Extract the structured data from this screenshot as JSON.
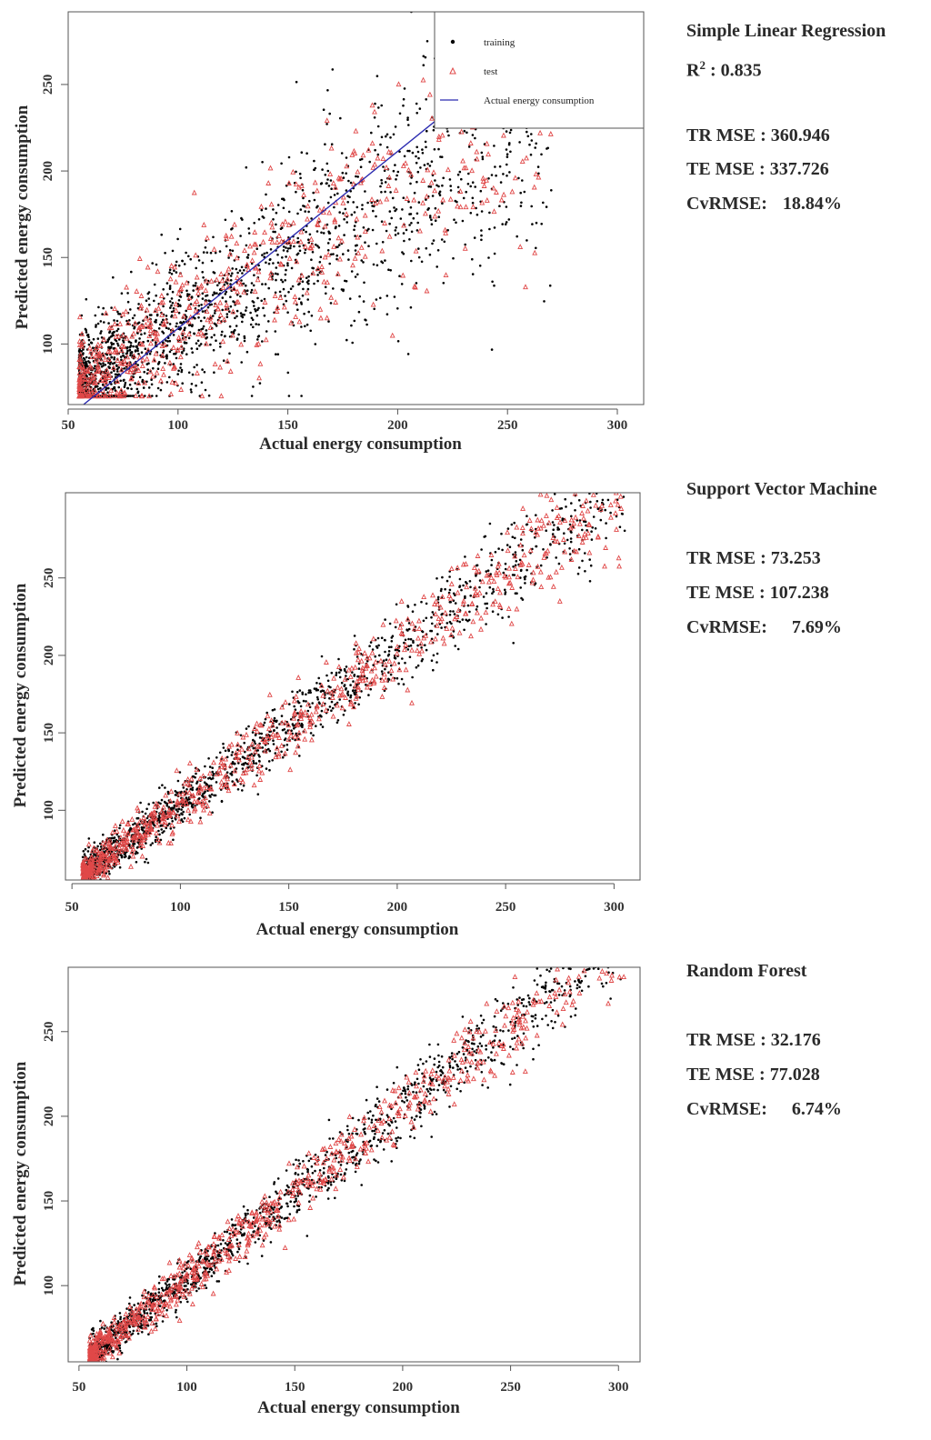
{
  "chart_data": [
    {
      "type": "scatter",
      "model": "Simple Linear Regression",
      "xlabel": "Actual energy consumption",
      "ylabel": "Predicted energy consumption",
      "xlim": [
        50,
        312
      ],
      "ylim": [
        65,
        292
      ],
      "xticks": [
        50,
        100,
        150,
        200,
        250,
        300
      ],
      "yticks": [
        100,
        150,
        200,
        250
      ],
      "legend": {
        "position": "top-right",
        "entries": [
          {
            "label": "training",
            "marker": "dot",
            "color": "#000000"
          },
          {
            "label": "test",
            "marker": "triangle",
            "color": "#e04848"
          },
          {
            "label": "Actual energy consumption",
            "marker": "line",
            "color": "#2b2bb0"
          }
        ]
      },
      "reference_line": {
        "x": [
          57,
          228
        ],
        "y": [
          65,
          240
        ]
      },
      "series": [
        {
          "name": "training",
          "spread": "wide"
        },
        {
          "name": "test",
          "spread": "wide"
        }
      ],
      "metrics": {
        "r2_label": "R",
        "r2_sup": "2",
        "r2_value": ": 0.835",
        "tr_mse_label": "TR MSE",
        "tr_mse": ": 360.946",
        "te_mse_label": "TE MSE",
        "te_mse": ": 337.726",
        "cvrmse_label": "CvRMSE:",
        "cvrmse": "18.84%"
      }
    },
    {
      "type": "scatter",
      "model": "Support Vector Machine",
      "xlabel": "Actual energy consumption",
      "ylabel": "Predicted energy consumption",
      "xlim": [
        47,
        312
      ],
      "ylim": [
        55,
        305
      ],
      "xticks": [
        50,
        100,
        150,
        200,
        250,
        300
      ],
      "yticks": [
        100,
        150,
        200,
        250
      ],
      "series": [
        {
          "name": "training",
          "spread": "medium"
        },
        {
          "name": "test",
          "spread": "medium"
        }
      ],
      "metrics": {
        "tr_mse_label": "TR MSE",
        "tr_mse": ":  73.253",
        "te_mse_label": "TE MSE",
        "te_mse": ": 107.238",
        "cvrmse_label": "CvRMSE:",
        "cvrmse": "7.69%"
      }
    },
    {
      "type": "scatter",
      "model": "Random Forest",
      "xlabel": "Actual energy consumption",
      "ylabel": "Predicted energy consumption",
      "xlim": [
        45,
        310
      ],
      "ylim": [
        55,
        288
      ],
      "xticks": [
        50,
        100,
        150,
        200,
        250,
        300
      ],
      "yticks": [
        100,
        150,
        200,
        250
      ],
      "series": [
        {
          "name": "training",
          "spread": "narrow"
        },
        {
          "name": "test",
          "spread": "narrow"
        }
      ],
      "metrics": {
        "tr_mse_label": "TR MSE",
        "tr_mse": ":  32.176",
        "te_mse_label": "TE MSE",
        "te_mse": ":  77.028",
        "cvrmse_label": "CvRMSE:",
        "cvrmse": "6.74%"
      }
    }
  ],
  "colors": {
    "training": "#000000",
    "test": "#e04848",
    "line": "#2b2bb0",
    "axis": "#555555"
  }
}
